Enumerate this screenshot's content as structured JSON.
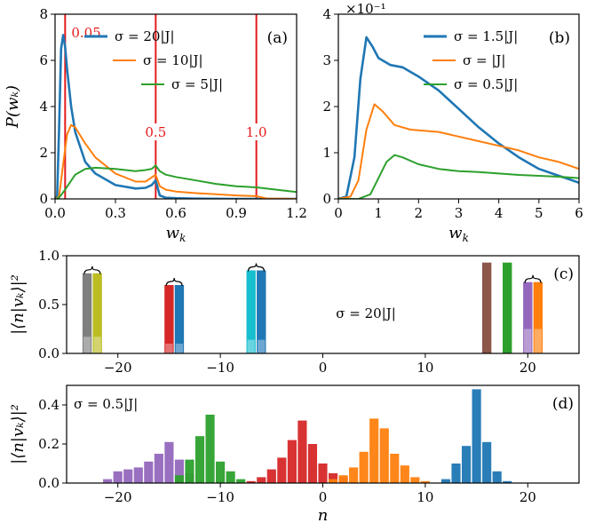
{
  "chart_data": [
    {
      "id": "a",
      "type": "line",
      "panel_label": "(a)",
      "xlabel": "w_k",
      "ylabel": "P(w_k)",
      "xlim": [
        0,
        1.2
      ],
      "ylim": [
        0,
        8
      ],
      "xticks": [
        0.0,
        0.3,
        0.6,
        0.9,
        1.2
      ],
      "xtick_labels": [
        "0.0",
        "0.3",
        "0.6",
        "0.9",
        "1.2"
      ],
      "yticks": [
        0,
        2,
        4,
        6,
        8
      ],
      "ytick_labels": [
        "0",
        "2",
        "4",
        "6",
        "8"
      ],
      "legend_position": "top-left",
      "vlines": [
        {
          "x": 0.05,
          "label": "0.05"
        },
        {
          "x": 0.5,
          "label": "0.5"
        },
        {
          "x": 1.0,
          "label": "1.0"
        }
      ],
      "series": [
        {
          "name": "σ = 20|J|",
          "color": "#1f77b4",
          "x": [
            0,
            0.01,
            0.02,
            0.03,
            0.04,
            0.05,
            0.06,
            0.08,
            0.1,
            0.15,
            0.2,
            0.3,
            0.4,
            0.45,
            0.48,
            0.5,
            0.52,
            0.55,
            0.6,
            0.7,
            0.9,
            1.2
          ],
          "y": [
            0,
            0.1,
            3.0,
            6.5,
            7.1,
            6.6,
            5.6,
            4.0,
            2.9,
            1.6,
            1.1,
            0.6,
            0.45,
            0.48,
            0.6,
            0.8,
            0.15,
            0.05,
            0.03,
            0.01,
            0.0,
            0.0
          ]
        },
        {
          "name": "σ = 10|J|",
          "color": "#ff7f0e",
          "x": [
            0,
            0.02,
            0.04,
            0.06,
            0.08,
            0.1,
            0.15,
            0.2,
            0.3,
            0.4,
            0.45,
            0.5,
            0.52,
            0.55,
            0.6,
            0.7,
            0.8,
            0.9,
            1.0,
            1.05,
            1.2
          ],
          "y": [
            0,
            0.1,
            1.5,
            2.8,
            3.2,
            3.1,
            2.4,
            1.8,
            1.1,
            0.75,
            0.75,
            1.05,
            0.55,
            0.4,
            0.32,
            0.25,
            0.2,
            0.15,
            0.12,
            0.02,
            0.0
          ]
        },
        {
          "name": "σ = 5|J|",
          "color": "#2ca02c",
          "x": [
            0,
            0.02,
            0.05,
            0.1,
            0.15,
            0.2,
            0.3,
            0.4,
            0.45,
            0.48,
            0.5,
            0.52,
            0.55,
            0.6,
            0.7,
            0.8,
            0.9,
            1.0,
            1.1,
            1.2
          ],
          "y": [
            0,
            0.05,
            0.4,
            1.05,
            1.3,
            1.35,
            1.3,
            1.2,
            1.25,
            1.3,
            1.45,
            1.2,
            1.05,
            0.95,
            0.8,
            0.65,
            0.55,
            0.5,
            0.4,
            0.3
          ]
        }
      ]
    },
    {
      "id": "b",
      "type": "line",
      "panel_label": "(b)",
      "xlabel": "w_k",
      "ylabel": "",
      "scale_note": "×10⁻¹",
      "xlim": [
        0,
        6
      ],
      "ylim": [
        0,
        4
      ],
      "xticks": [
        0,
        1,
        2,
        3,
        4,
        5,
        6
      ],
      "xtick_labels": [
        "0",
        "1",
        "2",
        "3",
        "4",
        "5",
        "6"
      ],
      "yticks": [
        0,
        1,
        2,
        3,
        4
      ],
      "ytick_labels": [
        "0",
        "1",
        "2",
        "3",
        "4"
      ],
      "legend_position": "top-right",
      "series": [
        {
          "name": "σ = 1.5|J|",
          "color": "#1f77b4",
          "x": [
            0,
            0.2,
            0.4,
            0.55,
            0.7,
            0.85,
            1.0,
            1.3,
            1.6,
            2.0,
            2.5,
            3.0,
            3.5,
            4.0,
            4.5,
            5.0,
            5.5,
            6.0
          ],
          "y": [
            0,
            0.05,
            0.9,
            2.6,
            3.5,
            3.3,
            3.05,
            2.9,
            2.85,
            2.65,
            2.35,
            1.95,
            1.55,
            1.2,
            0.9,
            0.65,
            0.5,
            0.35
          ]
        },
        {
          "name": "σ = |J|",
          "color": "#ff7f0e",
          "x": [
            0,
            0.3,
            0.5,
            0.7,
            0.9,
            1.1,
            1.4,
            1.8,
            2.5,
            3.0,
            3.5,
            4.0,
            4.5,
            5.0,
            5.5,
            6.0
          ],
          "y": [
            0,
            0.05,
            0.4,
            1.5,
            2.05,
            1.9,
            1.6,
            1.5,
            1.45,
            1.35,
            1.25,
            1.15,
            1.05,
            0.9,
            0.8,
            0.65
          ]
        },
        {
          "name": "σ = 0.5|J|",
          "color": "#2ca02c",
          "x": [
            0,
            0.5,
            0.8,
            1.0,
            1.2,
            1.4,
            1.6,
            2.0,
            2.5,
            3.0,
            3.5,
            4.0,
            4.5,
            5.0,
            5.5,
            6.0
          ],
          "y": [
            0,
            0.0,
            0.1,
            0.45,
            0.8,
            0.95,
            0.9,
            0.75,
            0.65,
            0.6,
            0.58,
            0.55,
            0.52,
            0.5,
            0.48,
            0.45
          ]
        }
      ]
    },
    {
      "id": "c",
      "type": "bar",
      "panel_label": "(c)",
      "xlabel": "",
      "ylabel": "|⟨n|v_k⟩|²",
      "annotation": "σ = 20|J|",
      "xlim": [
        -25,
        25
      ],
      "ylim": [
        0,
        1.0
      ],
      "xticks": [
        -20,
        -10,
        0,
        10,
        20
      ],
      "xtick_labels": [
        "−20",
        "−10",
        "0",
        "10",
        "20"
      ],
      "yticks": [
        0.0,
        0.5,
        1.0
      ],
      "ytick_labels": [
        "0.0",
        "0.5",
        "1.0"
      ],
      "bars": [
        {
          "x": -23,
          "value": 0.82,
          "color": "#7f7f7f",
          "inner": 0.17
        },
        {
          "x": -22,
          "value": 0.82,
          "color": "#bcbd22",
          "inner": 0.17
        },
        {
          "x": -15,
          "value": 0.7,
          "color": "#d62728",
          "inner": 0.1
        },
        {
          "x": -14,
          "value": 0.7,
          "color": "#1f77b4",
          "inner": 0.1
        },
        {
          "x": -7,
          "value": 0.85,
          "color": "#17becf",
          "inner": 0.14
        },
        {
          "x": -6,
          "value": 0.85,
          "color": "#1f77b4",
          "inner": 0.14
        },
        {
          "x": 16,
          "value": 0.93,
          "color": "#8c564b",
          "inner": 0.0
        },
        {
          "x": 18,
          "value": 0.93,
          "color": "#2ca02c",
          "inner": 0.0
        },
        {
          "x": 20,
          "value": 0.73,
          "color": "#9467bd",
          "inner": 0.25
        },
        {
          "x": 21,
          "value": 0.73,
          "color": "#ff7f0e",
          "inner": 0.25
        }
      ],
      "braces": [
        -22.5,
        -14.5,
        -6.5,
        20.5
      ]
    },
    {
      "id": "d",
      "type": "bar",
      "panel_label": "(d)",
      "xlabel": "n",
      "ylabel": "|⟨n|v_k⟩|²",
      "annotation": "σ = 0.5|J|",
      "xlim": [
        -25,
        25
      ],
      "ylim": [
        0,
        0.5
      ],
      "xticks": [
        -20,
        -10,
        0,
        10,
        20
      ],
      "xtick_labels": [
        "−20",
        "−10",
        "0",
        "10",
        "20"
      ],
      "yticks": [
        0.0,
        0.2,
        0.4
      ],
      "ytick_labels": [
        "0.0",
        "0.2",
        "0.4"
      ],
      "series": [
        {
          "color": "#9467bd",
          "x": [
            -21,
            -20,
            -19,
            -18,
            -17,
            -16,
            -15,
            -14,
            -13
          ],
          "values": [
            0.02,
            0.06,
            0.07,
            0.08,
            0.11,
            0.15,
            0.21,
            0.12,
            0.05
          ]
        },
        {
          "color": "#2ca02c",
          "x": [
            -14,
            -13,
            -12,
            -11,
            -10,
            -9,
            -8
          ],
          "values": [
            0.04,
            0.12,
            0.24,
            0.35,
            0.11,
            0.06,
            0.02
          ]
        },
        {
          "color": "#d62728",
          "x": [
            -7,
            -6,
            -5,
            -4,
            -3,
            -2,
            -1,
            0,
            1,
            2
          ],
          "values": [
            0.01,
            0.03,
            0.07,
            0.13,
            0.22,
            0.32,
            0.2,
            0.1,
            0.05,
            0.03
          ]
        },
        {
          "color": "#ff7f0e",
          "x": [
            1,
            2,
            3,
            4,
            5,
            6,
            7,
            8,
            9,
            10
          ],
          "values": [
            0.02,
            0.04,
            0.08,
            0.16,
            0.33,
            0.28,
            0.15,
            0.09,
            0.03,
            0.01
          ]
        },
        {
          "color": "#1f77b4",
          "x": [
            12,
            13,
            14,
            15,
            16,
            17,
            18
          ],
          "values": [
            0.02,
            0.1,
            0.19,
            0.48,
            0.21,
            0.06,
            0.01
          ]
        }
      ]
    }
  ]
}
